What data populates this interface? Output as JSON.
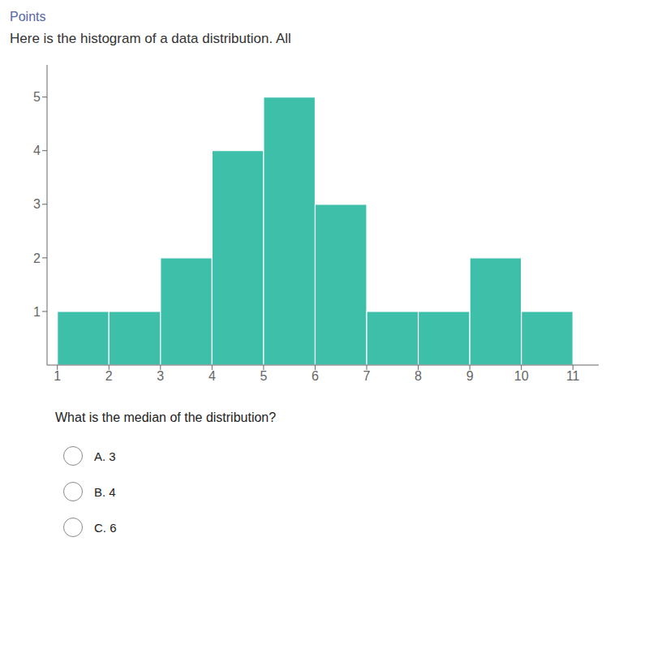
{
  "chart_data": {
    "type": "histogram",
    "title": "Here is the histogram of a data distribution. All",
    "annotations": [
      "Points",
      "What is the median of the distribution?",
      "A. 3",
      "B. 4",
      "C. 6"
    ],
    "bins": [
      1,
      2,
      3,
      4,
      5,
      6,
      7,
      8,
      9,
      10,
      11
    ],
    "values": [
      1,
      1,
      2,
      4,
      5,
      3,
      1,
      1,
      2,
      1
    ],
    "color": "#3dbfaa",
    "xlim": [
      0.8,
      11.5
    ],
    "ylim": [
      0,
      5.6
    ],
    "xticks": [
      1,
      2,
      3,
      4,
      5,
      6,
      7,
      8,
      9,
      10,
      11
    ],
    "yticks": [
      1,
      2,
      3,
      4,
      5
    ],
    "grid": false
  }
}
